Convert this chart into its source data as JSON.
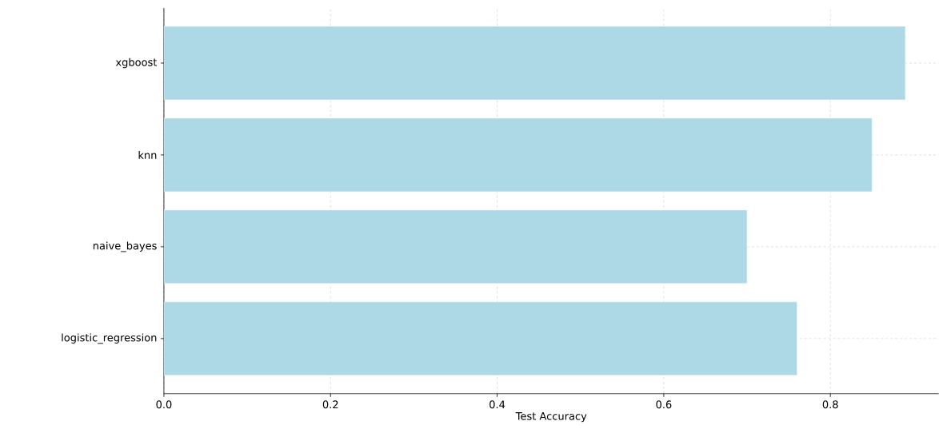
{
  "chart_data": {
    "type": "bar",
    "orientation": "horizontal",
    "categories": [
      "xgboost",
      "knn",
      "naive_bayes",
      "logistic_regression"
    ],
    "values": [
      0.89,
      0.85,
      0.7,
      0.76
    ],
    "color": "#add8e6",
    "xlabel": "Test Accuracy",
    "xlim": [
      0,
      0.93
    ],
    "xticks": [
      {
        "value": 0,
        "label": "0.0"
      },
      {
        "value": 0.2,
        "label": "0.2"
      },
      {
        "value": 0.4,
        "label": "0.4"
      },
      {
        "value": 0.6,
        "label": "0.6"
      },
      {
        "value": 0.8,
        "label": "0.8"
      }
    ],
    "grid": true
  }
}
